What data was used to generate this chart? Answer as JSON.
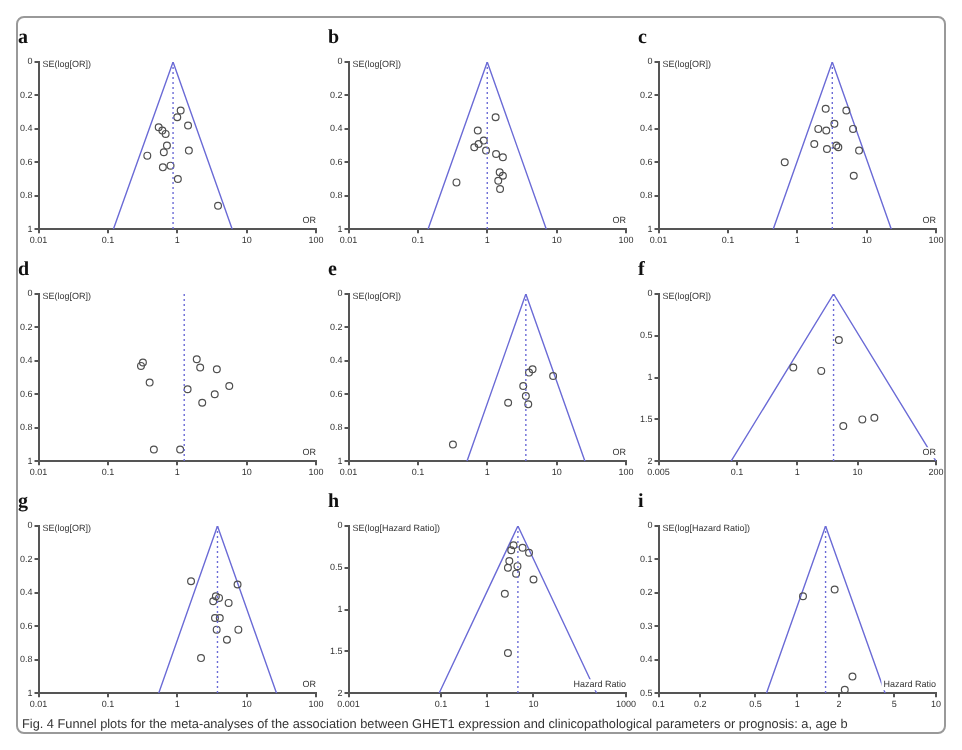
{
  "chart_data": [
    {
      "type": "scatter",
      "title": "a",
      "xlabel": "OR",
      "ylabel": "SE(log[OR])",
      "log": "x",
      "marker": "circle",
      "grid": false,
      "legend": false,
      "xlim": [
        0.01,
        100
      ],
      "xticks": [
        0.01,
        0.1,
        1,
        10,
        100
      ],
      "ylim": [
        1,
        0
      ],
      "yticks": [
        0,
        0.2,
        0.4,
        0.6,
        0.8,
        1
      ],
      "ref_lines": [
        {
          "axis": "x",
          "value": 0.87,
          "color": "#6b6bd6",
          "line_style": "dotted"
        }
      ],
      "series": [
        {
          "type": "scatter",
          "color": "#505050",
          "x": [
            1.12,
            1.0,
            1.43,
            0.54,
            0.61,
            0.68,
            0.71,
            0.64,
            1.47,
            0.37,
            0.62,
            0.8,
            1.02,
            3.87
          ],
          "values": [
            0.29,
            0.33,
            0.38,
            0.39,
            0.41,
            0.43,
            0.5,
            0.54,
            0.53,
            0.56,
            0.63,
            0.62,
            0.7,
            0.86
          ]
        },
        {
          "type": "line",
          "marker": "none",
          "color": "#6b6bd6",
          "x": [
            0.12,
            0.87,
            6.2
          ],
          "values": [
            1,
            0,
            1
          ]
        }
      ]
    },
    {
      "type": "scatter",
      "title": "b",
      "xlabel": "OR",
      "ylabel": "SE(log[OR])",
      "log": "x",
      "marker": "circle",
      "grid": false,
      "legend": false,
      "xlim": [
        0.01,
        100
      ],
      "xticks": [
        0.01,
        0.1,
        1,
        10,
        100
      ],
      "ylim": [
        1,
        0
      ],
      "yticks": [
        0,
        0.2,
        0.4,
        0.6,
        0.8,
        1
      ],
      "ref_lines": [
        {
          "axis": "x",
          "value": 1.0,
          "color": "#6b6bd6",
          "line_style": "dotted"
        }
      ],
      "series": [
        {
          "type": "scatter",
          "color": "#505050",
          "x": [
            1.32,
            0.73,
            0.89,
            0.65,
            0.75,
            0.96,
            1.34,
            1.68,
            0.36,
            1.51,
            1.68,
            1.44,
            1.53
          ],
          "values": [
            0.33,
            0.41,
            0.47,
            0.51,
            0.49,
            0.53,
            0.55,
            0.57,
            0.72,
            0.66,
            0.68,
            0.71,
            0.76
          ]
        },
        {
          "type": "line",
          "marker": "none",
          "color": "#6b6bd6",
          "x": [
            0.14,
            1.0,
            7.1
          ],
          "values": [
            1,
            0,
            1
          ]
        }
      ]
    },
    {
      "type": "scatter",
      "title": "c",
      "xlabel": "OR",
      "ylabel": "SE(log[OR])",
      "log": "x",
      "marker": "circle",
      "grid": false,
      "legend": false,
      "xlim": [
        0.01,
        100
      ],
      "xticks": [
        0.01,
        0.1,
        1,
        10,
        100
      ],
      "ylim": [
        1,
        0
      ],
      "yticks": [
        0,
        0.2,
        0.4,
        0.6,
        0.8,
        1
      ],
      "ref_lines": [
        {
          "axis": "x",
          "value": 3.2,
          "color": "#6b6bd6",
          "line_style": "dotted"
        }
      ],
      "series": [
        {
          "type": "scatter",
          "color": "#505050",
          "x": [
            2.57,
            5.1,
            3.43,
            2.01,
            2.62,
            6.37,
            1.76,
            2.68,
            3.66,
            3.91,
            7.78,
            0.66,
            6.52
          ],
          "values": [
            0.28,
            0.29,
            0.37,
            0.4,
            0.41,
            0.4,
            0.49,
            0.52,
            0.5,
            0.51,
            0.53,
            0.6,
            0.68
          ]
        },
        {
          "type": "line",
          "marker": "none",
          "color": "#6b6bd6",
          "x": [
            0.45,
            3.2,
            22.7
          ],
          "values": [
            1,
            0,
            1
          ]
        }
      ]
    },
    {
      "type": "scatter",
      "title": "d",
      "xlabel": "OR",
      "ylabel": "SE(log[OR])",
      "log": "x",
      "marker": "circle",
      "grid": false,
      "legend": false,
      "xlim": [
        0.01,
        100
      ],
      "xticks": [
        0.01,
        0.1,
        1,
        10,
        100
      ],
      "ylim": [
        1,
        0
      ],
      "yticks": [
        0,
        0.2,
        0.4,
        0.6,
        0.8,
        1
      ],
      "ref_lines": [
        {
          "axis": "x",
          "value": 1.26,
          "color": "#6b6bd6",
          "line_style": "dotted"
        }
      ],
      "series": [
        {
          "type": "scatter",
          "color": "#505050",
          "x": [
            0.32,
            0.3,
            0.4,
            1.91,
            2.14,
            3.72,
            1.41,
            5.62,
            3.47,
            2.29,
            0.46,
            1.1
          ],
          "values": [
            0.41,
            0.43,
            0.53,
            0.39,
            0.44,
            0.45,
            0.57,
            0.55,
            0.6,
            0.65,
            0.93,
            0.93
          ]
        }
      ]
    },
    {
      "type": "scatter",
      "title": "e",
      "xlabel": "OR",
      "ylabel": "SE(log[OR])",
      "log": "x",
      "marker": "circle",
      "grid": false,
      "legend": false,
      "xlim": [
        0.01,
        100
      ],
      "xticks": [
        0.01,
        0.1,
        1,
        10,
        100
      ],
      "ylim": [
        1,
        0
      ],
      "yticks": [
        0,
        0.2,
        0.4,
        0.6,
        0.8,
        1
      ],
      "ref_lines": [
        {
          "axis": "x",
          "value": 3.6,
          "color": "#6b6bd6",
          "line_style": "dotted"
        }
      ],
      "series": [
        {
          "type": "scatter",
          "color": "#505050",
          "x": [
            4.5,
            4.0,
            8.9,
            3.3,
            3.6,
            3.9,
            2.0,
            0.32
          ],
          "values": [
            0.45,
            0.47,
            0.49,
            0.55,
            0.61,
            0.66,
            0.65,
            0.9
          ]
        },
        {
          "type": "line",
          "marker": "none",
          "color": "#6b6bd6",
          "x": [
            0.51,
            3.6,
            25.6
          ],
          "values": [
            1,
            0,
            1
          ]
        }
      ]
    },
    {
      "type": "scatter",
      "title": "f",
      "xlabel": "OR",
      "ylabel": "SE(log[OR])",
      "log": "x",
      "marker": "circle",
      "grid": false,
      "legend": false,
      "xlim": [
        0.005,
        200
      ],
      "xticks": [
        0.005,
        0.1,
        1,
        10,
        200
      ],
      "ylim": [
        2,
        0
      ],
      "yticks": [
        0,
        0.5,
        1,
        1.5,
        2
      ],
      "ref_lines": [
        {
          "axis": "x",
          "value": 4.0,
          "color": "#6b6bd6",
          "line_style": "dotted"
        }
      ],
      "series": [
        {
          "type": "scatter",
          "color": "#505050",
          "x": [
            4.9,
            0.86,
            2.5,
            5.8,
            12,
            19
          ],
          "values": [
            0.55,
            0.88,
            0.92,
            1.58,
            1.5,
            1.48
          ]
        },
        {
          "type": "line",
          "marker": "none",
          "color": "#6b6bd6",
          "x": [
            0.08,
            4.0,
            200
          ],
          "values": [
            2,
            0,
            2
          ]
        }
      ]
    },
    {
      "type": "scatter",
      "title": "g",
      "xlabel": "OR",
      "ylabel": "SE(log[OR])",
      "log": "x",
      "marker": "circle",
      "grid": false,
      "legend": false,
      "xlim": [
        0.01,
        100
      ],
      "xticks": [
        0.01,
        0.1,
        1,
        10,
        100
      ],
      "ylim": [
        1,
        0
      ],
      "yticks": [
        0,
        0.2,
        0.4,
        0.6,
        0.8,
        1
      ],
      "ref_lines": [
        {
          "axis": "x",
          "value": 3.8,
          "color": "#6b6bd6",
          "line_style": "dotted"
        }
      ],
      "series": [
        {
          "type": "scatter",
          "color": "#505050",
          "x": [
            1.58,
            7.4,
            3.6,
            4.0,
            3.3,
            5.5,
            3.5,
            4.1,
            3.7,
            7.6,
            5.2,
            2.2
          ],
          "values": [
            0.33,
            0.35,
            0.42,
            0.43,
            0.45,
            0.46,
            0.55,
            0.55,
            0.62,
            0.62,
            0.68,
            0.79
          ]
        },
        {
          "type": "line",
          "marker": "none",
          "color": "#6b6bd6",
          "x": [
            0.54,
            3.8,
            27
          ],
          "values": [
            1,
            0,
            1
          ]
        }
      ]
    },
    {
      "type": "scatter",
      "title": "h",
      "xlabel": "Hazard Ratio",
      "ylabel": "SE(log[Hazard Ratio])",
      "log": "x",
      "marker": "circle",
      "grid": false,
      "legend": false,
      "xlim": [
        0.001,
        1000
      ],
      "xticks": [
        0.001,
        0.1,
        1,
        10,
        1000
      ],
      "ylim": [
        2,
        0
      ],
      "yticks": [
        0,
        0.5,
        1,
        1.5,
        2
      ],
      "ref_lines": [
        {
          "axis": "x",
          "value": 4.6,
          "color": "#6b6bd6",
          "line_style": "dotted"
        }
      ],
      "series": [
        {
          "type": "scatter",
          "color": "#505050",
          "x": [
            3.7,
            5.8,
            3.3,
            8.0,
            3.0,
            2.8,
            4.5,
            4.2,
            10,
            2.4,
            2.8
          ],
          "values": [
            0.23,
            0.26,
            0.29,
            0.32,
            0.42,
            0.5,
            0.48,
            0.57,
            0.64,
            0.81,
            1.52
          ]
        },
        {
          "type": "line",
          "marker": "none",
          "color": "#6b6bd6",
          "x": [
            0.091,
            4.6,
            232
          ],
          "values": [
            2,
            0,
            2
          ]
        }
      ]
    },
    {
      "type": "scatter",
      "title": "i",
      "xlabel": "Hazard Ratio",
      "ylabel": "SE(log[Hazard Ratio])",
      "log": "x",
      "marker": "circle",
      "grid": false,
      "legend": false,
      "xlim": [
        0.1,
        10
      ],
      "xticks": [
        0.1,
        0.2,
        0.5,
        1,
        2,
        5,
        10
      ],
      "ylim": [
        0.5,
        0
      ],
      "yticks": [
        0,
        0.1,
        0.2,
        0.3,
        0.4,
        0.5
      ],
      "ref_lines": [
        {
          "axis": "x",
          "value": 1.6,
          "color": "#6b6bd6",
          "line_style": "dotted"
        }
      ],
      "series": [
        {
          "type": "scatter",
          "color": "#505050",
          "x": [
            1.1,
            1.86,
            2.5,
            2.2
          ],
          "values": [
            0.21,
            0.19,
            0.45,
            0.49
          ]
        },
        {
          "type": "line",
          "marker": "none",
          "color": "#6b6bd6",
          "x": [
            0.6,
            1.6,
            4.3
          ],
          "values": [
            0.5,
            0,
            0.5
          ]
        }
      ]
    },
    {
      "type": "other",
      "annotations": [
        "Fig. 4 Funnel plots for the meta-analyses of the association between GHET1 expression and clinicopathological parameters or prognosis: a, age b"
      ]
    }
  ]
}
